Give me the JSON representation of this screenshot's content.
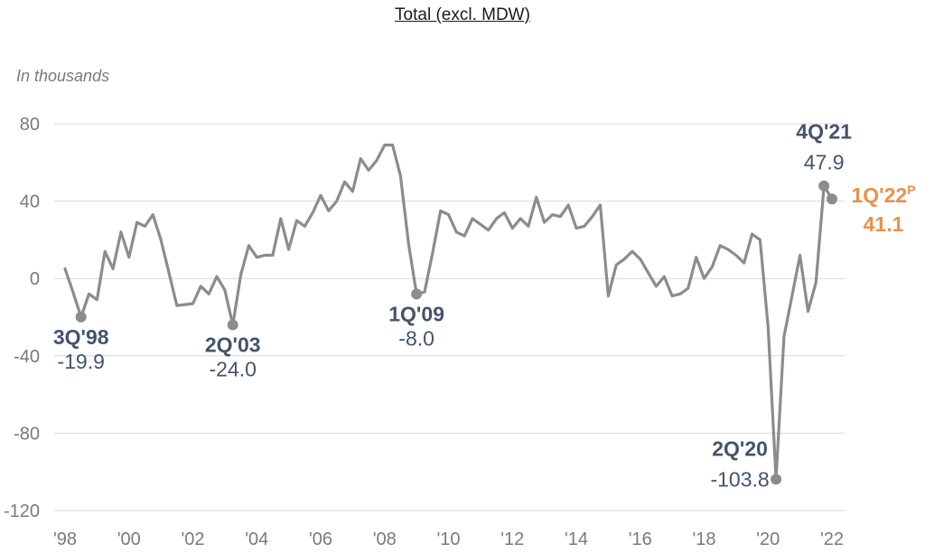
{
  "chart_data": {
    "type": "line",
    "title": "Total (excl. MDW)",
    "unit_label": "In thousands",
    "ylim": [
      -120,
      80
    ],
    "y_ticks": [
      80,
      40,
      0,
      -40,
      -80,
      -120
    ],
    "y_tick_labels": [
      "80",
      "40",
      "0",
      "-40",
      "-80",
      "-120"
    ],
    "x_tick_labels": [
      "'98",
      "'00",
      "'02",
      "'04",
      "'06",
      "'08",
      "'10",
      "'12",
      "'14",
      "'16",
      "'18",
      "'20",
      "'22"
    ],
    "x_tick_years": [
      1998,
      2000,
      2002,
      2004,
      2006,
      2008,
      2010,
      2012,
      2014,
      2016,
      2018,
      2020,
      2022
    ],
    "grid": true,
    "colors": {
      "line": "#8c8c8c",
      "grid": "#d9d9d9",
      "axis_text": "#7a7a7a",
      "label": "#44546a",
      "highlight": "#e8914c"
    },
    "series": [
      {
        "values": [
          {
            "x": 1998.0,
            "y": 5
          },
          {
            "x": 1998.25,
            "y": -7
          },
          {
            "x": 1998.5,
            "y": -19.9
          },
          {
            "x": 1998.75,
            "y": -8
          },
          {
            "x": 1999.0,
            "y": -11
          },
          {
            "x": 1999.25,
            "y": 14
          },
          {
            "x": 1999.5,
            "y": 5
          },
          {
            "x": 1999.75,
            "y": 24
          },
          {
            "x": 2000.0,
            "y": 11
          },
          {
            "x": 2000.25,
            "y": 29
          },
          {
            "x": 2000.5,
            "y": 27
          },
          {
            "x": 2000.75,
            "y": 33
          },
          {
            "x": 2001.0,
            "y": 20
          },
          {
            "x": 2001.25,
            "y": 3
          },
          {
            "x": 2001.5,
            "y": -14
          },
          {
            "x": 2001.75,
            "y": -13.5
          },
          {
            "x": 2002.0,
            "y": -13
          },
          {
            "x": 2002.25,
            "y": -4
          },
          {
            "x": 2002.5,
            "y": -8
          },
          {
            "x": 2002.75,
            "y": 1
          },
          {
            "x": 2003.0,
            "y": -6
          },
          {
            "x": 2003.25,
            "y": -24.0
          },
          {
            "x": 2003.5,
            "y": 2
          },
          {
            "x": 2003.75,
            "y": 17
          },
          {
            "x": 2004.0,
            "y": 11
          },
          {
            "x": 2004.25,
            "y": 12
          },
          {
            "x": 2004.5,
            "y": 12
          },
          {
            "x": 2004.75,
            "y": 31
          },
          {
            "x": 2005.0,
            "y": 15
          },
          {
            "x": 2005.25,
            "y": 30
          },
          {
            "x": 2005.5,
            "y": 27
          },
          {
            "x": 2005.75,
            "y": 34
          },
          {
            "x": 2006.0,
            "y": 43
          },
          {
            "x": 2006.25,
            "y": 35
          },
          {
            "x": 2006.5,
            "y": 40
          },
          {
            "x": 2006.75,
            "y": 50
          },
          {
            "x": 2007.0,
            "y": 45
          },
          {
            "x": 2007.25,
            "y": 62
          },
          {
            "x": 2007.5,
            "y": 56
          },
          {
            "x": 2007.75,
            "y": 61
          },
          {
            "x": 2008.0,
            "y": 69
          },
          {
            "x": 2008.25,
            "y": 69
          },
          {
            "x": 2008.5,
            "y": 53
          },
          {
            "x": 2008.75,
            "y": 18
          },
          {
            "x": 2009.0,
            "y": -8.0
          },
          {
            "x": 2009.25,
            "y": -7
          },
          {
            "x": 2009.5,
            "y": 13
          },
          {
            "x": 2009.75,
            "y": 35
          },
          {
            "x": 2010.0,
            "y": 33
          },
          {
            "x": 2010.25,
            "y": 24
          },
          {
            "x": 2010.5,
            "y": 22
          },
          {
            "x": 2010.75,
            "y": 31
          },
          {
            "x": 2011.0,
            "y": 28
          },
          {
            "x": 2011.25,
            "y": 25
          },
          {
            "x": 2011.5,
            "y": 31
          },
          {
            "x": 2011.75,
            "y": 34
          },
          {
            "x": 2012.0,
            "y": 26
          },
          {
            "x": 2012.25,
            "y": 31
          },
          {
            "x": 2012.5,
            "y": 27
          },
          {
            "x": 2012.75,
            "y": 42
          },
          {
            "x": 2013.0,
            "y": 29
          },
          {
            "x": 2013.25,
            "y": 33
          },
          {
            "x": 2013.5,
            "y": 32
          },
          {
            "x": 2013.75,
            "y": 38
          },
          {
            "x": 2014.0,
            "y": 26
          },
          {
            "x": 2014.25,
            "y": 27
          },
          {
            "x": 2014.5,
            "y": 32
          },
          {
            "x": 2014.75,
            "y": 38
          },
          {
            "x": 2015.0,
            "y": -9
          },
          {
            "x": 2015.25,
            "y": 7
          },
          {
            "x": 2015.5,
            "y": 10
          },
          {
            "x": 2015.75,
            "y": 14
          },
          {
            "x": 2016.0,
            "y": 10
          },
          {
            "x": 2016.25,
            "y": 3
          },
          {
            "x": 2016.5,
            "y": -4
          },
          {
            "x": 2016.75,
            "y": 1
          },
          {
            "x": 2017.0,
            "y": -9
          },
          {
            "x": 2017.25,
            "y": -8
          },
          {
            "x": 2017.5,
            "y": -5
          },
          {
            "x": 2017.75,
            "y": 11
          },
          {
            "x": 2018.0,
            "y": 0
          },
          {
            "x": 2018.25,
            "y": 6
          },
          {
            "x": 2018.5,
            "y": 17
          },
          {
            "x": 2018.75,
            "y": 15
          },
          {
            "x": 2019.0,
            "y": 12
          },
          {
            "x": 2019.25,
            "y": 8
          },
          {
            "x": 2019.5,
            "y": 23
          },
          {
            "x": 2019.75,
            "y": 20
          },
          {
            "x": 2020.0,
            "y": -25
          },
          {
            "x": 2020.25,
            "y": -103.8
          },
          {
            "x": 2020.5,
            "y": -30
          },
          {
            "x": 2020.75,
            "y": -9
          },
          {
            "x": 2021.0,
            "y": 12
          },
          {
            "x": 2021.25,
            "y": -17
          },
          {
            "x": 2021.5,
            "y": -2
          },
          {
            "x": 2021.75,
            "y": 47.9
          },
          {
            "x": 2022.0,
            "y": 41.1
          }
        ]
      }
    ],
    "annotations": [
      {
        "x": 1998.5,
        "y": -19.9,
        "period": "3Q'98",
        "value": "-19.9",
        "position": "below",
        "highlight": false
      },
      {
        "x": 2003.25,
        "y": -24.0,
        "period": "2Q'03",
        "value": "-24.0",
        "position": "below",
        "highlight": false
      },
      {
        "x": 2009.0,
        "y": -8.0,
        "period": "1Q'09",
        "value": "-8.0",
        "position": "below",
        "highlight": false
      },
      {
        "x": 2020.25,
        "y": -103.8,
        "period": "2Q'20",
        "value": "-103.8",
        "position": "above",
        "highlight": false
      },
      {
        "x": 2021.75,
        "y": 47.9,
        "period": "4Q'21",
        "value": "47.9",
        "position": "above",
        "highlight": false
      },
      {
        "x": 2022.0,
        "y": 41.1,
        "period": "1Q'22",
        "superscript": "P",
        "value": "41.1",
        "position": "right",
        "highlight": true
      }
    ]
  }
}
